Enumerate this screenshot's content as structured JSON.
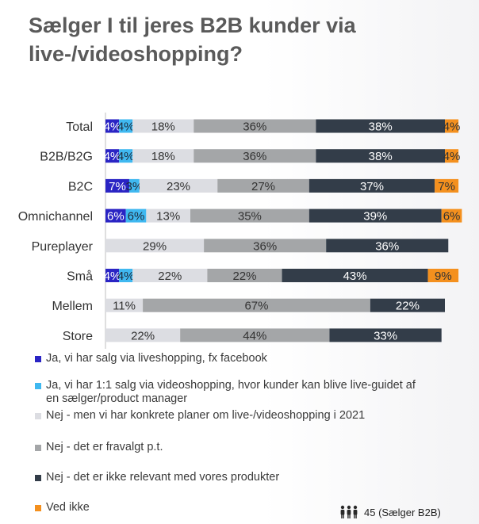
{
  "chart_data": {
    "type": "bar",
    "orientation": "horizontal",
    "stacked": true,
    "title": "Sælger I til jeres B2B kunder via live-/videoshopping?",
    "categories": [
      "Total",
      "B2B/B2G",
      "B2C",
      "Omnichannel",
      "Pureplayer",
      "Små",
      "Mellem",
      "Store"
    ],
    "value_format": "percent",
    "xlim": [
      0,
      100
    ],
    "series": [
      {
        "name": "Ja, vi har salg via liveshopping, fx facebook",
        "color": "#2a24c4",
        "label_color": "#ffffff",
        "values": [
          4,
          4,
          7,
          6,
          0,
          4,
          0,
          0
        ]
      },
      {
        "name": "Ja, vi har 1:1 salg via videoshopping, hvor kunder kan blive live-guidet af en sælger/product manager",
        "color": "#3fb8f0",
        "label_color": "#1f2a3a",
        "values": [
          4,
          4,
          3,
          6,
          0,
          4,
          0,
          0
        ]
      },
      {
        "name": "Nej - men vi har konkrete planer om live-/videoshopping i 2021",
        "color": "#dcdde2",
        "label_color": "#333333",
        "values": [
          18,
          18,
          23,
          13,
          29,
          22,
          11,
          22
        ]
      },
      {
        "name": "Nej - det er fravalgt p.t.",
        "color": "#a4a6a8",
        "label_color": "#333333",
        "values": [
          36,
          36,
          27,
          35,
          36,
          22,
          67,
          44
        ]
      },
      {
        "name": "Nej - det er ikke relevant med vores produkter",
        "color": "#333d49",
        "label_color": "#ffffff",
        "values": [
          38,
          38,
          37,
          39,
          36,
          43,
          22,
          33
        ]
      },
      {
        "name": "Ved ikke",
        "color": "#f4901e",
        "label_color": "#333333",
        "values": [
          4,
          4,
          7,
          6,
          0,
          9,
          0,
          0
        ]
      }
    ],
    "legend_position": "bottom",
    "grid": false
  },
  "footnote": {
    "icon": "people-icon",
    "text": "45 (Sælger B2B)"
  }
}
